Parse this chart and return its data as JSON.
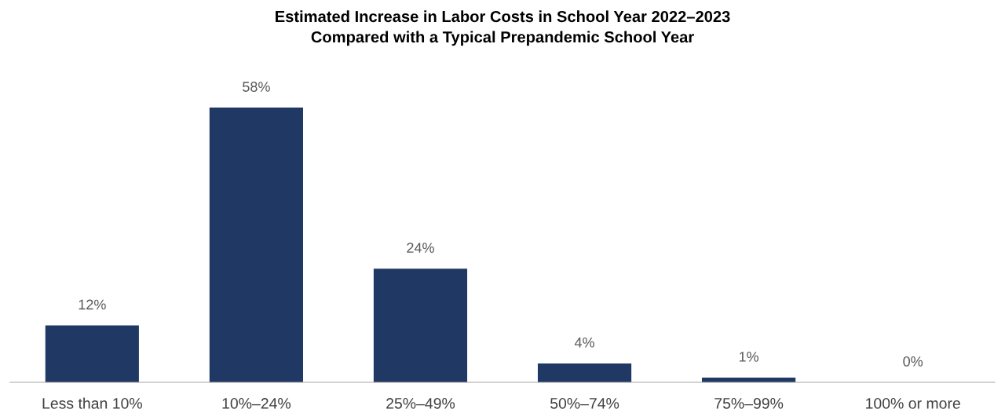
{
  "chart_data": {
    "type": "bar",
    "title": "Estimated Increase in Labor Costs in School Year 2022–2023\nCompared with a Typical Prepandemic School Year",
    "categories": [
      "Less than 10%",
      "10%–24%",
      "25%–49%",
      "50%–74%",
      "75%–99%",
      "100% or more"
    ],
    "values": [
      12,
      58,
      24,
      4,
      1,
      0
    ],
    "value_labels": [
      "12%",
      "58%",
      "24%",
      "4%",
      "1%",
      "0%"
    ],
    "color": "#203864",
    "tick_labels": "x",
    "grid": false
  }
}
